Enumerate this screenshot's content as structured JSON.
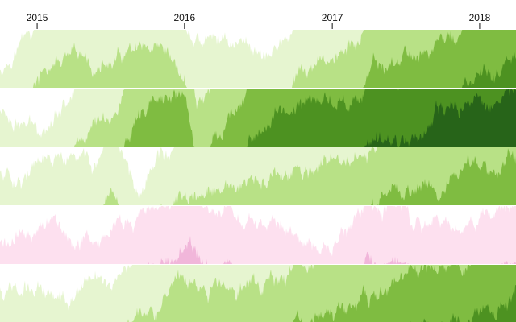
{
  "chart_data": {
    "type": "horizon",
    "x_tick_labels": [
      "2015",
      "2016",
      "2017",
      "2018"
    ],
    "xlim": [
      "2014-10-01",
      "2018-04-01"
    ],
    "band_count": 5,
    "colors": {
      "positive": [
        "#e6f5d0",
        "#b8e186",
        "#7fbc41",
        "#4d9221",
        "#276419"
      ],
      "negative": [
        "#fde0ef",
        "#f1b6da",
        "#de77ae",
        "#c51b7d",
        "#8e0152"
      ]
    },
    "series": [
      {
        "anchors": [
          [
            "2014-10-01",
            0.4
          ],
          [
            "2014-12-01",
            0.9
          ],
          [
            "2015-03-01",
            1.4
          ],
          [
            "2015-06-01",
            1.3
          ],
          [
            "2015-09-01",
            1.5
          ],
          [
            "2015-12-01",
            1.2
          ],
          [
            "2016-02-01",
            0.75
          ],
          [
            "2016-05-01",
            0.8
          ],
          [
            "2016-08-01",
            0.65
          ],
          [
            "2016-11-01",
            1.2
          ],
          [
            "2017-02-01",
            1.6
          ],
          [
            "2017-05-01",
            2.3
          ],
          [
            "2017-08-01",
            2.6
          ],
          [
            "2017-11-01",
            2.9
          ],
          [
            "2018-01-01",
            3.1
          ],
          [
            "2018-04-01",
            3.4
          ]
        ]
      },
      {
        "anchors": [
          [
            "2014-10-01",
            0.6
          ],
          [
            "2015-01-01",
            0.3
          ],
          [
            "2015-03-01",
            0.8
          ],
          [
            "2015-05-01",
            1.3
          ],
          [
            "2015-07-01",
            1.6
          ],
          [
            "2015-09-01",
            2.2
          ],
          [
            "2015-11-01",
            2.7
          ],
          [
            "2016-01-01",
            2.9
          ],
          [
            "2016-02-01",
            1.6
          ],
          [
            "2016-04-01",
            2.4
          ],
          [
            "2016-07-01",
            3.3
          ],
          [
            "2016-10-01",
            3.7
          ],
          [
            "2017-01-01",
            3.8
          ],
          [
            "2017-04-01",
            3.9
          ],
          [
            "2017-07-01",
            4.2
          ],
          [
            "2017-10-01",
            4.5
          ],
          [
            "2018-01-01",
            4.8
          ],
          [
            "2018-04-01",
            5.0
          ]
        ]
      },
      {
        "anchors": [
          [
            "2014-10-01",
            0.55
          ],
          [
            "2015-03-01",
            0.7
          ],
          [
            "2015-08-01",
            0.7
          ],
          [
            "2015-09-01",
            0.35
          ],
          [
            "2015-11-01",
            0.9
          ],
          [
            "2016-03-01",
            1.1
          ],
          [
            "2016-07-01",
            1.3
          ],
          [
            "2016-10-01",
            1.45
          ],
          [
            "2017-02-01",
            1.7
          ],
          [
            "2017-06-01",
            2.1
          ],
          [
            "2017-09-01",
            2.4
          ],
          [
            "2018-01-01",
            2.6
          ],
          [
            "2018-04-01",
            2.8
          ]
        ]
      },
      {
        "anchors": [
          [
            "2014-10-01",
            -0.4
          ],
          [
            "2015-03-01",
            -0.5
          ],
          [
            "2015-06-01",
            -0.45
          ],
          [
            "2015-09-01",
            -0.8
          ],
          [
            "2015-12-01",
            -1.1
          ],
          [
            "2016-01-15",
            -1.35
          ],
          [
            "2016-03-01",
            -1.0
          ],
          [
            "2016-06-01",
            -0.8
          ],
          [
            "2016-09-01",
            -0.6
          ],
          [
            "2016-12-01",
            -0.3
          ],
          [
            "2017-03-01",
            -0.8
          ],
          [
            "2017-06-01",
            -0.95
          ],
          [
            "2017-09-01",
            -0.8
          ],
          [
            "2018-01-01",
            -0.9
          ],
          [
            "2018-04-01",
            -0.9
          ]
        ]
      },
      {
        "anchors": [
          [
            "2014-10-01",
            0.6
          ],
          [
            "2015-03-01",
            0.55
          ],
          [
            "2015-07-01",
            0.85
          ],
          [
            "2015-10-01",
            1.4
          ],
          [
            "2016-01-01",
            1.5
          ],
          [
            "2016-05-01",
            1.6
          ],
          [
            "2016-08-01",
            1.8
          ],
          [
            "2016-11-01",
            2.0
          ],
          [
            "2017-02-01",
            2.2
          ],
          [
            "2017-05-01",
            2.5
          ],
          [
            "2017-08-01",
            2.8
          ],
          [
            "2017-11-01",
            3.0
          ],
          [
            "2018-02-01",
            3.3
          ],
          [
            "2018-04-01",
            3.5
          ]
        ]
      }
    ]
  }
}
